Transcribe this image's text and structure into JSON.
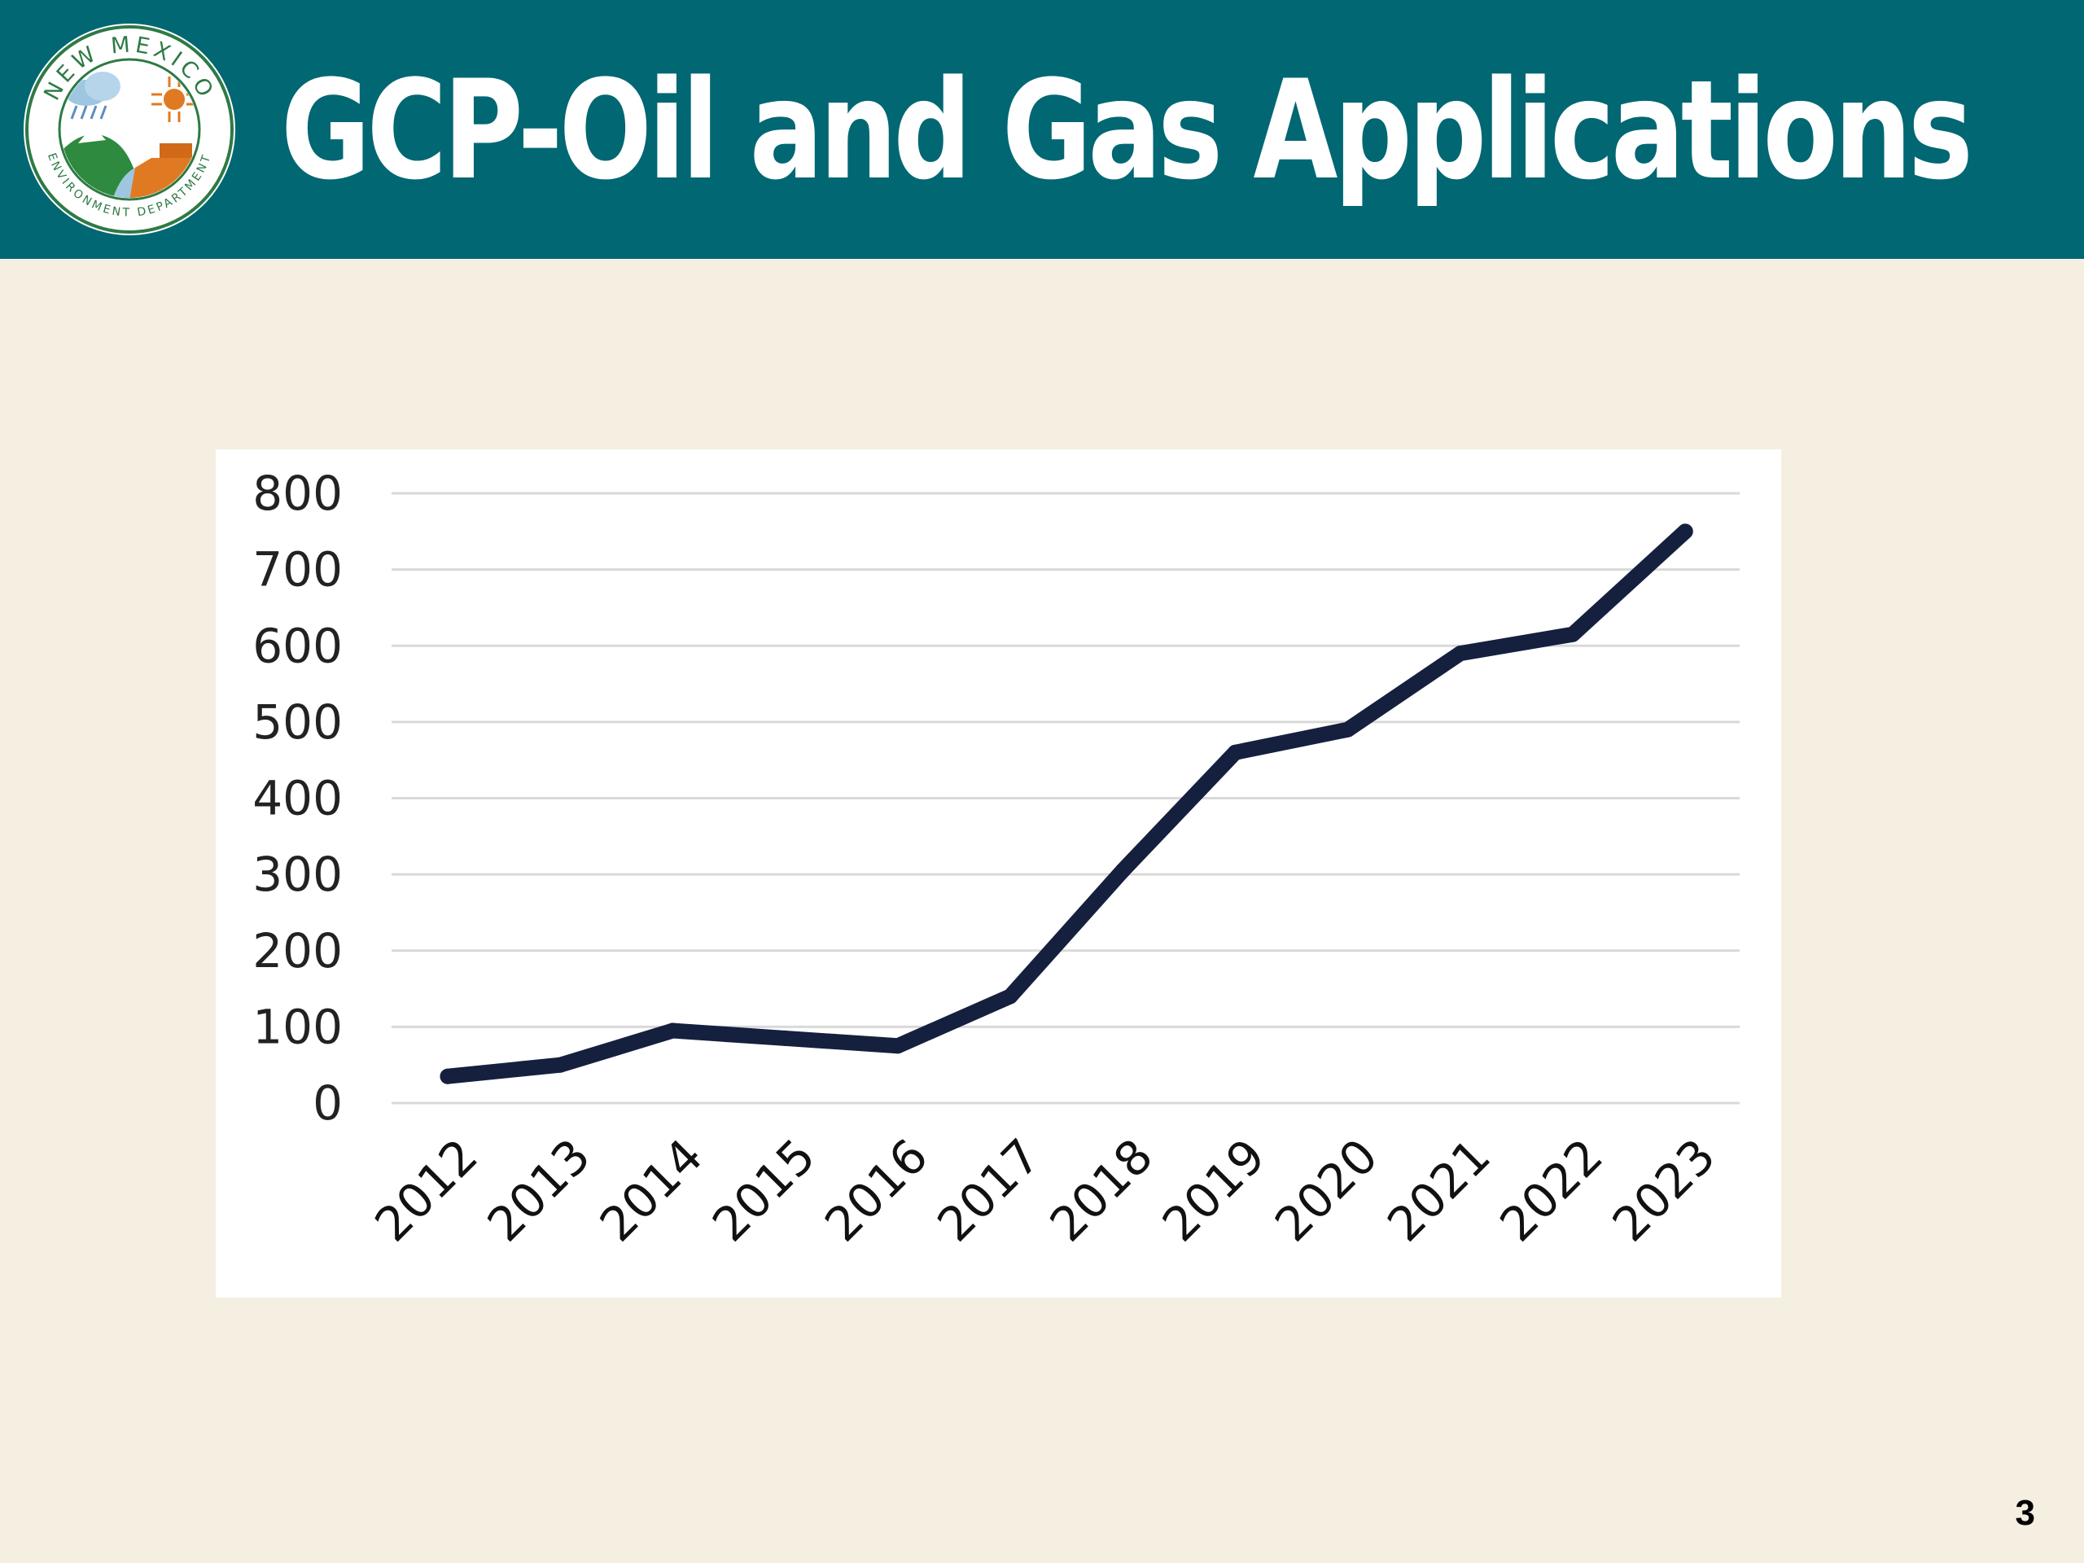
{
  "header": {
    "title": "GCP-Oil and Gas Applications",
    "logo_text_top": "NEW MEXICO",
    "logo_text_bottom": "ENVIRONMENT DEPARTMENT",
    "background_color": "#016773"
  },
  "chart_data": {
    "type": "line",
    "categories": [
      "2012",
      "2013",
      "2014",
      "2015",
      "2016",
      "2017",
      "2018",
      "2019",
      "2020",
      "2021",
      "2022",
      "2023"
    ],
    "series": [
      {
        "values": [
          35,
          50,
          95,
          85,
          75,
          140,
          305,
          460,
          490,
          590,
          615,
          750
        ]
      }
    ],
    "yticks": [
      "0",
      "100",
      "200",
      "300",
      "400",
      "500",
      "600",
      "700",
      "800"
    ],
    "ylim": [
      0,
      800
    ],
    "title": "",
    "xlabel": "",
    "ylabel": "",
    "grid": true,
    "line_color": "#14203e",
    "grid_color": "#d9d9d9"
  },
  "footer": {
    "page_number": "3"
  }
}
